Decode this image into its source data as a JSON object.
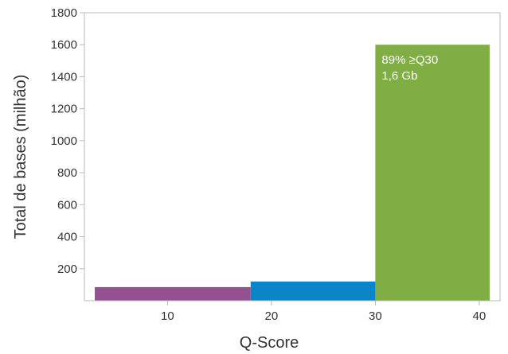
{
  "chart_data": {
    "type": "bar",
    "xlabel": "Q-Score",
    "ylabel": "Total de bases (milhão)",
    "xlim": [
      2,
      42
    ],
    "ylim": [
      0,
      1800
    ],
    "x_ticks": [
      10,
      20,
      30,
      40
    ],
    "y_ticks": [
      200,
      400,
      600,
      800,
      1000,
      1200,
      1400,
      1600,
      1800
    ],
    "grid": false,
    "bars": [
      {
        "x_start": 3,
        "x_end": 18,
        "value": 85,
        "color": "#93528f"
      },
      {
        "x_start": 18,
        "x_end": 30,
        "value": 120,
        "color": "#0a86c8"
      },
      {
        "x_start": 30,
        "x_end": 41,
        "value": 1600,
        "color": "#80ae45"
      }
    ],
    "annotations": [
      {
        "text": "89% ≥Q30",
        "bar": 2
      },
      {
        "text": "1,6 Gb",
        "bar": 2
      }
    ]
  }
}
